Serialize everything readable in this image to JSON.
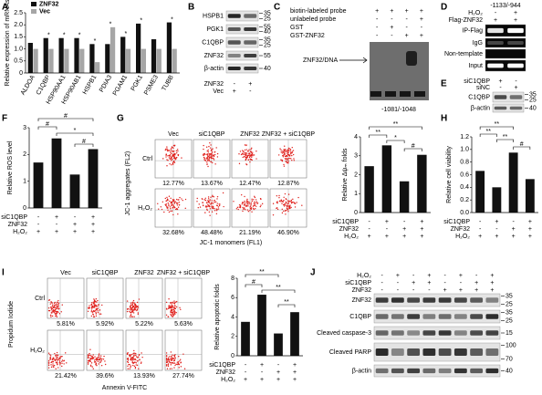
{
  "panel_letters": [
    "A",
    "B",
    "C",
    "D",
    "E",
    "F",
    "G",
    "H",
    "I",
    "J"
  ],
  "chart_data": [
    {
      "type": "bar",
      "ylabel": "Relative expression of mRNAs",
      "categories": [
        "ALDOA",
        "C1QBP",
        "HSP90AA1",
        "HSP90AB1",
        "HSPB1",
        "PDIA3",
        "PGAM1",
        "PGK1",
        "PSME3",
        "TUBB"
      ],
      "series": [
        {
          "name": "ZNF32",
          "color": "#111111",
          "values": [
            1.25,
            1.45,
            1.45,
            1.45,
            1.2,
            1.2,
            1.5,
            2.05,
            1.4,
            2.1
          ]
        },
        {
          "name": "Vec",
          "color": "#a6a6a6",
          "values": [
            1.0,
            1.0,
            1.0,
            1.0,
            0.45,
            1.9,
            1.0,
            1.0,
            1.0,
            1.0
          ]
        }
      ],
      "ylim": [
        0,
        2.5
      ],
      "yticks": [
        0,
        0.5,
        {
          "value": 1,
          "label": "1.0"
        },
        1.5,
        {
          "value": 2,
          "label": "2.0"
        },
        2.5
      ],
      "legend": "upper left",
      "significance": [
        null,
        "*",
        "*",
        "*",
        "*",
        "*",
        "*",
        "*",
        null,
        "*"
      ]
    },
    {
      "type": "bar",
      "ylabel": "Relative ROS level",
      "values": [
        1.7,
        2.6,
        1.25,
        2.2
      ],
      "color": "#111111",
      "ylim": [
        0,
        3
      ],
      "yticks": [
        0,
        1,
        2,
        3
      ],
      "annotations": [
        "#",
        "#",
        "*",
        "#"
      ],
      "conditions": [
        {
          "name": "siC1QBP",
          "signs": [
            "-",
            "+",
            "-",
            "+"
          ]
        },
        {
          "name": "ZNF32",
          "signs": [
            "-",
            "-",
            "+",
            "+"
          ]
        },
        {
          "name": "H₂O₂",
          "signs": [
            "+",
            "+",
            "+",
            "+"
          ]
        }
      ]
    },
    {
      "type": "bar",
      "ylabel": "Relative Δψₘ folds",
      "values": [
        2.45,
        3.55,
        1.65,
        3.05
      ],
      "color": "#111111",
      "ylim": [
        0,
        4
      ],
      "yticks": [
        0,
        1,
        2,
        3,
        4
      ],
      "annotations": [
        "**",
        "**",
        "*",
        "#"
      ],
      "conditions": [
        {
          "name": "siC1QBP",
          "signs": [
            "-",
            "+",
            "-",
            "+"
          ]
        },
        {
          "name": "ZNF32",
          "signs": [
            "-",
            "-",
            "+",
            "+"
          ]
        },
        {
          "name": "H₂O₂",
          "signs": [
            "+",
            "+",
            "+",
            "+"
          ]
        }
      ]
    },
    {
      "type": "bar",
      "ylabel": "Relative cell viability",
      "values": [
        0.66,
        0.4,
        0.95,
        0.53
      ],
      "color": "#111111",
      "ylim": [
        0,
        1.2
      ],
      "yticks": [
        {
          "value": 0,
          "label": "0.0"
        },
        0.2,
        0.4,
        0.6,
        0.8,
        {
          "value": 1,
          "label": "1.0"
        },
        1.2
      ],
      "annotations": [
        "**",
        "**",
        "**",
        "#"
      ],
      "conditions": [
        {
          "name": "siC1QBP",
          "signs": [
            "-",
            "+",
            "-",
            "+"
          ]
        },
        {
          "name": "ZNF32",
          "signs": [
            "-",
            "-",
            "+",
            "+"
          ]
        },
        {
          "name": "H₂O₂",
          "signs": [
            "+",
            "+",
            "+",
            "+"
          ]
        }
      ]
    },
    {
      "type": "bar",
      "ylabel": "Relative apoptotic folds",
      "values": [
        3.5,
        6.3,
        2.3,
        4.5
      ],
      "color": "#111111",
      "ylim": [
        0,
        8
      ],
      "yticks": [
        0,
        2,
        4,
        6,
        8
      ],
      "annotations": [
        "**",
        "#",
        "**",
        "**"
      ],
      "conditions": [
        {
          "name": "siC1QBP",
          "signs": [
            "-",
            "+",
            "-",
            "+"
          ]
        },
        {
          "name": "ZNF32",
          "signs": [
            "-",
            "-",
            "+",
            "+"
          ]
        },
        {
          "name": "H₂O₂",
          "signs": [
            "+",
            "+",
            "+",
            "+"
          ]
        }
      ]
    }
  ],
  "blot_b": {
    "conditions": [
      {
        "name": "ZNF32",
        "signs": [
          "-",
          "+"
        ]
      },
      {
        "name": "Vec",
        "signs": [
          "+",
          "-"
        ]
      }
    ],
    "rows": [
      {
        "label": "HSPB1",
        "markers": [
          "35",
          "25"
        ]
      },
      {
        "label": "PGK1",
        "markers": [
          "55",
          "40"
        ]
      },
      {
        "label": "C1QBP",
        "markers": [
          "35",
          "25"
        ]
      },
      {
        "label": "ZNF32",
        "markers": [
          "55"
        ]
      },
      {
        "label": "β-actin",
        "markers": [
          "40"
        ]
      }
    ]
  },
  "emsa_c": {
    "conditions": [
      {
        "name": "biotin-labeled probe",
        "signs": [
          "+",
          "+",
          "+",
          "+"
        ]
      },
      {
        "name": "unlabeled probe",
        "signs": [
          "-",
          "-",
          "-",
          "+"
        ]
      },
      {
        "name": "GST",
        "signs": [
          "-",
          "+",
          "-",
          "-"
        ]
      },
      {
        "name": "GST-ZNF32",
        "signs": [
          "-",
          "-",
          "+",
          "+"
        ]
      }
    ],
    "band_label": "ZNF32/DNA",
    "probe": "-1081/-1048"
  },
  "chip_d": {
    "probe": "-1133/-944",
    "conditions": [
      {
        "name": "H₂O₂",
        "signs": [
          "-",
          "+"
        ]
      },
      {
        "name": "Flag-ZNF32",
        "signs": [
          "+",
          "+"
        ]
      }
    ],
    "rows": [
      {
        "label": "IP-Flag"
      },
      {
        "label": "IgG"
      },
      {
        "label": "Non-template"
      },
      {
        "label": "Input"
      }
    ]
  },
  "blot_e": {
    "conditions": [
      {
        "name": "siC1QBP",
        "signs": [
          "+",
          "-"
        ]
      },
      {
        "name": "siNC",
        "signs": [
          "-",
          "+"
        ]
      }
    ],
    "rows": [
      {
        "label": "C1QBP",
        "markers": [
          "35",
          "25"
        ]
      },
      {
        "label": "β-actin",
        "markers": [
          "40"
        ]
      }
    ]
  },
  "flow_g": {
    "columns": [
      "Vec",
      "siC1QBP",
      "ZNF32",
      "ZNF32 + siC1QBP"
    ],
    "rows": [
      {
        "name": "Ctrl",
        "percents": [
          "12.77%",
          "13.67%",
          "12.47%",
          "12.87%"
        ]
      },
      {
        "name": "H₂O₂",
        "percents": [
          "32.68%",
          "48.48%",
          "21.19%",
          "46.90%"
        ]
      }
    ],
    "ylabel": "JC-1 aggregates (FL2)",
    "xlabel": "JC-1 monomers (FL1)"
  },
  "flow_i": {
    "columns": [
      "Vec",
      "siC1QBP",
      "ZNF32",
      "ZNF32 + siC1QBP"
    ],
    "rows": [
      {
        "name": "Ctrl",
        "percents": [
          "5.81%",
          "5.92%",
          "5.22%",
          "5.63%"
        ]
      },
      {
        "name": "H₂O₂",
        "percents": [
          "21.42%",
          "39.6%",
          "13.93%",
          "27.74%"
        ]
      }
    ],
    "ylabel": "Propidum Iodide",
    "xlabel": "Annexin V-FITC"
  },
  "blot_j": {
    "conditions": [
      {
        "name": "H₂O₂",
        "signs": [
          "-",
          "+",
          "-",
          "+",
          "-",
          "+",
          "-",
          "+"
        ]
      },
      {
        "name": "siC1QBP",
        "signs": [
          "-",
          "-",
          "+",
          "+",
          "-",
          "-",
          "+",
          "+"
        ]
      },
      {
        "name": "ZNF32",
        "signs": [
          "-",
          "-",
          "-",
          "-",
          "+",
          "+",
          "+",
          "+"
        ]
      }
    ],
    "rows": [
      {
        "label": "ZNF32",
        "markers": [
          "35",
          "25"
        ]
      },
      {
        "label": "C1QBP",
        "markers": [
          "35",
          "25"
        ]
      },
      {
        "label": "Cleaved caspase-3",
        "markers": [
          "15"
        ]
      },
      {
        "label": "Cleaved PARP",
        "markers": [
          "100",
          "70"
        ]
      },
      {
        "label": "β-actin",
        "markers": [
          "40"
        ]
      }
    ]
  }
}
